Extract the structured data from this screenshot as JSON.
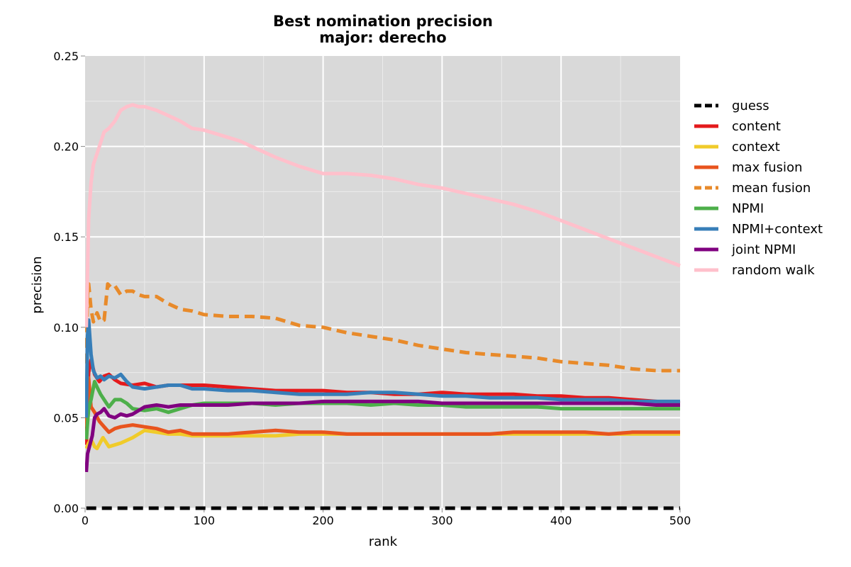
{
  "chart_data": {
    "type": "line",
    "title": "Best nomination precision",
    "subtitle": "major: derecho",
    "xlabel": "rank",
    "ylabel": "precision",
    "xlim": [
      0,
      500
    ],
    "ylim": [
      0,
      0.25
    ],
    "xticks": [
      0,
      100,
      200,
      300,
      400,
      500
    ],
    "xtick_labels": [
      "0",
      "100",
      "200",
      "300",
      "400",
      "500"
    ],
    "yticks": [
      0,
      0.05,
      0.1,
      0.15,
      0.2,
      0.25
    ],
    "ytick_labels": [
      "0.00",
      "0.05",
      "0.10",
      "0.15",
      "0.20",
      "0.25"
    ],
    "grid": true,
    "plot_background": "#d9d9d9",
    "legend_position": "outside-right",
    "series": [
      {
        "name": "guess",
        "color": "#000000",
        "dashed": true,
        "x": [
          1,
          500
        ],
        "y": [
          0.0,
          0.0
        ]
      },
      {
        "name": "content",
        "color": "#e41a1c",
        "dashed": false,
        "x": [
          1,
          3,
          5,
          8,
          12,
          16,
          20,
          25,
          30,
          40,
          50,
          60,
          70,
          80,
          90,
          100,
          120,
          140,
          160,
          180,
          200,
          220,
          240,
          260,
          280,
          300,
          320,
          340,
          360,
          380,
          400,
          420,
          440,
          460,
          480,
          500
        ],
        "y": [
          0.035,
          0.075,
          0.082,
          0.074,
          0.07,
          0.073,
          0.074,
          0.071,
          0.069,
          0.068,
          0.069,
          0.067,
          0.068,
          0.068,
          0.068,
          0.068,
          0.067,
          0.066,
          0.065,
          0.065,
          0.065,
          0.064,
          0.064,
          0.063,
          0.063,
          0.064,
          0.063,
          0.063,
          0.063,
          0.062,
          0.062,
          0.061,
          0.061,
          0.06,
          0.059,
          0.058
        ]
      },
      {
        "name": "context",
        "color": "#f0cb2a",
        "dashed": false,
        "x": [
          1,
          3,
          5,
          8,
          10,
          15,
          20,
          25,
          30,
          40,
          50,
          60,
          70,
          80,
          90,
          100,
          120,
          140,
          160,
          180,
          200,
          220,
          240,
          260,
          280,
          300,
          320,
          340,
          360,
          380,
          400,
          420,
          440,
          460,
          480,
          500
        ],
        "y": [
          0.033,
          0.036,
          0.038,
          0.034,
          0.033,
          0.039,
          0.034,
          0.035,
          0.036,
          0.039,
          0.043,
          0.042,
          0.041,
          0.041,
          0.04,
          0.04,
          0.04,
          0.04,
          0.04,
          0.041,
          0.041,
          0.041,
          0.041,
          0.041,
          0.041,
          0.041,
          0.041,
          0.041,
          0.041,
          0.041,
          0.041,
          0.041,
          0.041,
          0.041,
          0.041,
          0.041
        ]
      },
      {
        "name": "max fusion",
        "color": "#e8541e",
        "dashed": false,
        "x": [
          1,
          3,
          5,
          8,
          12,
          16,
          20,
          25,
          30,
          40,
          50,
          60,
          70,
          80,
          90,
          100,
          120,
          140,
          160,
          180,
          200,
          220,
          240,
          260,
          280,
          300,
          320,
          340,
          360,
          380,
          400,
          420,
          440,
          460,
          480,
          500
        ],
        "y": [
          0.045,
          0.072,
          0.056,
          0.053,
          0.048,
          0.045,
          0.042,
          0.044,
          0.045,
          0.046,
          0.045,
          0.044,
          0.042,
          0.043,
          0.041,
          0.041,
          0.041,
          0.042,
          0.043,
          0.042,
          0.042,
          0.041,
          0.041,
          0.041,
          0.041,
          0.041,
          0.041,
          0.041,
          0.042,
          0.042,
          0.042,
          0.042,
          0.041,
          0.042,
          0.042,
          0.042
        ]
      },
      {
        "name": "mean fusion",
        "color": "#e88a2a",
        "dashed": true,
        "x": [
          1,
          2,
          3,
          5,
          7,
          10,
          13,
          16,
          19,
          22,
          25,
          30,
          35,
          40,
          45,
          50,
          60,
          70,
          80,
          90,
          100,
          120,
          140,
          160,
          180,
          200,
          220,
          240,
          260,
          280,
          300,
          320,
          340,
          360,
          380,
          400,
          420,
          440,
          460,
          480,
          500
        ],
        "y": [
          0.08,
          0.118,
          0.124,
          0.11,
          0.103,
          0.108,
          0.103,
          0.104,
          0.124,
          0.122,
          0.123,
          0.118,
          0.12,
          0.12,
          0.118,
          0.117,
          0.117,
          0.113,
          0.11,
          0.109,
          0.107,
          0.106,
          0.106,
          0.105,
          0.101,
          0.1,
          0.097,
          0.095,
          0.093,
          0.09,
          0.088,
          0.086,
          0.085,
          0.084,
          0.083,
          0.081,
          0.08,
          0.079,
          0.077,
          0.076,
          0.076
        ]
      },
      {
        "name": "NPMI",
        "color": "#4daf4a",
        "dashed": false,
        "x": [
          1,
          3,
          5,
          8,
          10,
          13,
          16,
          20,
          25,
          30,
          35,
          40,
          50,
          60,
          70,
          80,
          90,
          100,
          120,
          140,
          160,
          180,
          200,
          220,
          240,
          260,
          280,
          300,
          320,
          340,
          360,
          380,
          400,
          420,
          440,
          460,
          480,
          500
        ],
        "y": [
          0.038,
          0.055,
          0.06,
          0.07,
          0.067,
          0.063,
          0.06,
          0.056,
          0.06,
          0.06,
          0.058,
          0.055,
          0.054,
          0.055,
          0.053,
          0.055,
          0.057,
          0.058,
          0.058,
          0.058,
          0.057,
          0.058,
          0.058,
          0.058,
          0.057,
          0.058,
          0.057,
          0.057,
          0.056,
          0.056,
          0.056,
          0.056,
          0.055,
          0.055,
          0.055,
          0.055,
          0.055,
          0.055
        ]
      },
      {
        "name": "NPMI+context",
        "color": "#377eb8",
        "dashed": false,
        "x": [
          1,
          2,
          3,
          5,
          7,
          10,
          13,
          16,
          20,
          25,
          30,
          35,
          40,
          50,
          60,
          70,
          80,
          90,
          100,
          120,
          140,
          160,
          180,
          200,
          220,
          240,
          260,
          280,
          300,
          320,
          340,
          360,
          380,
          400,
          420,
          440,
          460,
          480,
          500
        ],
        "y": [
          0.05,
          0.095,
          0.104,
          0.085,
          0.076,
          0.072,
          0.073,
          0.071,
          0.073,
          0.072,
          0.074,
          0.07,
          0.067,
          0.066,
          0.067,
          0.068,
          0.068,
          0.066,
          0.066,
          0.065,
          0.065,
          0.064,
          0.063,
          0.063,
          0.063,
          0.064,
          0.064,
          0.063,
          0.062,
          0.062,
          0.061,
          0.061,
          0.061,
          0.06,
          0.06,
          0.06,
          0.059,
          0.059,
          0.059
        ]
      },
      {
        "name": "joint NPMI",
        "color": "#800080",
        "dashed": false,
        "x": [
          1,
          2,
          4,
          6,
          8,
          10,
          13,
          16,
          20,
          25,
          30,
          35,
          40,
          50,
          60,
          70,
          80,
          90,
          100,
          120,
          140,
          160,
          180,
          200,
          220,
          240,
          260,
          280,
          300,
          320,
          340,
          360,
          380,
          400,
          420,
          440,
          460,
          480,
          500
        ],
        "y": [
          0.02,
          0.03,
          0.035,
          0.04,
          0.05,
          0.052,
          0.053,
          0.055,
          0.051,
          0.05,
          0.052,
          0.051,
          0.052,
          0.056,
          0.057,
          0.056,
          0.057,
          0.057,
          0.057,
          0.057,
          0.058,
          0.058,
          0.058,
          0.059,
          0.059,
          0.059,
          0.059,
          0.059,
          0.058,
          0.058,
          0.058,
          0.058,
          0.058,
          0.058,
          0.058,
          0.058,
          0.058,
          0.057,
          0.057
        ]
      },
      {
        "name": "random walk",
        "color": "#ffc0cb",
        "dashed": false,
        "x": [
          1,
          2,
          3,
          5,
          7,
          10,
          13,
          16,
          20,
          25,
          30,
          35,
          40,
          45,
          50,
          60,
          70,
          80,
          90,
          100,
          110,
          120,
          130,
          140,
          150,
          160,
          180,
          200,
          220,
          240,
          260,
          280,
          300,
          320,
          340,
          360,
          380,
          400,
          420,
          440,
          460,
          480,
          500
        ],
        "y": [
          0.1,
          0.13,
          0.16,
          0.18,
          0.19,
          0.196,
          0.202,
          0.208,
          0.21,
          0.214,
          0.22,
          0.222,
          0.223,
          0.222,
          0.222,
          0.22,
          0.217,
          0.214,
          0.21,
          0.209,
          0.207,
          0.205,
          0.203,
          0.2,
          0.197,
          0.194,
          0.189,
          0.185,
          0.185,
          0.184,
          0.182,
          0.179,
          0.177,
          0.174,
          0.171,
          0.168,
          0.164,
          0.159,
          0.154,
          0.149,
          0.144,
          0.139,
          0.134
        ]
      }
    ]
  }
}
